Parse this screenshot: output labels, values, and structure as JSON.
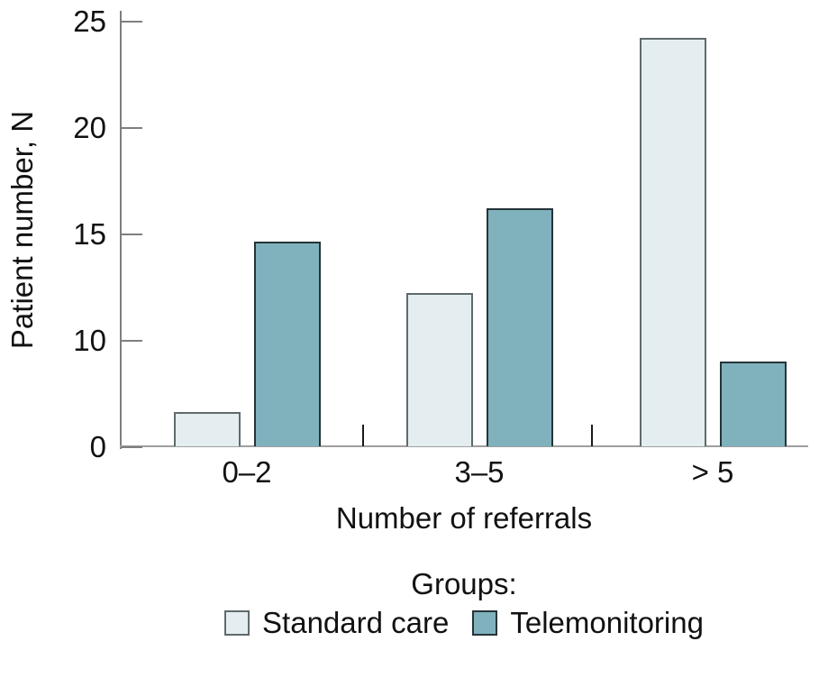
{
  "figure": {
    "background": "#ffffff",
    "text_color": "#111111",
    "axis_color": "#7f7f7f"
  },
  "chart_data": {
    "type": "bar",
    "title": "",
    "categories": [
      "0–2",
      "3–5",
      "> 5"
    ],
    "series": [
      {
        "name": "Standard care",
        "values": [
          2,
          9,
          24
        ],
        "fill": "#e4edf0",
        "border": "#5f6a6d"
      },
      {
        "name": "Telemonitoring",
        "values": [
          12,
          14,
          5
        ],
        "fill": "#7fb2bd",
        "border": "#263338"
      }
    ],
    "xlabel": "Number of referrals",
    "ylabel": "Patient number, N",
    "ylim": [
      0,
      25
    ],
    "ytick_labels_top_to_bottom": [
      "25",
      "20",
      "15",
      "10",
      "0"
    ],
    "layout_hints": {
      "ytick_spacing": "evenly spaced as in source figure (no '5' label shown)",
      "grid": false,
      "legend_position": "bottom",
      "group_divider_ticks_on_baseline": true
    },
    "legend": {
      "title": "Groups:"
    }
  }
}
